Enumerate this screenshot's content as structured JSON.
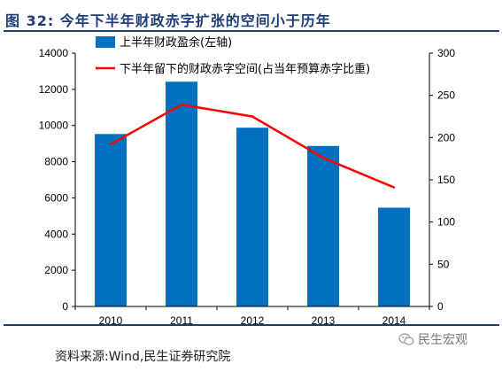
{
  "header": {
    "title": "图 32:  今年下半年财政赤字扩张的空间小于历年"
  },
  "footer": {
    "source": "资料来源:Wind,民生证券研究院",
    "watermark": "民生宏观"
  },
  "colors": {
    "bar": "#0070c0",
    "line": "#ff0000",
    "title": "#1f3c78",
    "axis": "#000000"
  },
  "chart_data": {
    "type": "bar",
    "categories": [
      "2010",
      "2011",
      "2012",
      "2013",
      "2014"
    ],
    "series": [
      {
        "name": "上半年财政盈余(左轴)",
        "type": "bar",
        "axis": "left",
        "values": [
          9530,
          12420,
          9880,
          8870,
          5460
        ]
      },
      {
        "name": "下半年留下的财政赤字空间(占当年预算赤字比重)",
        "type": "line",
        "axis": "right",
        "values": [
          192,
          239,
          225,
          176,
          141
        ]
      }
    ],
    "y_left": {
      "min": 0,
      "max": 14000,
      "ticks": [
        0,
        2000,
        4000,
        6000,
        8000,
        10000,
        12000,
        14000
      ]
    },
    "y_right": {
      "min": 0,
      "max": 300,
      "ticks": [
        0,
        50,
        100,
        150,
        200,
        250,
        300
      ]
    },
    "legend_position": "top-left",
    "grid": false
  }
}
